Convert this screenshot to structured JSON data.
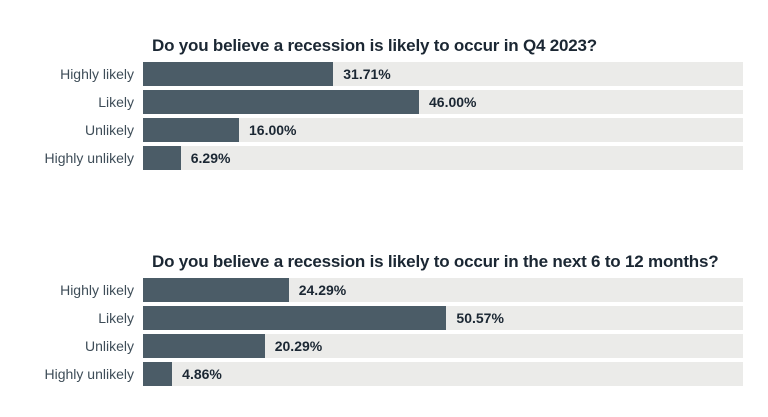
{
  "colors": {
    "bar": "#4b5c67",
    "track": "#ebebe9",
    "title_text": "#1b2733",
    "category_text": "#3e4d58",
    "value_text": "#1b2733",
    "background": "#ffffff"
  },
  "chart_data": [
    {
      "type": "bar",
      "orientation": "horizontal",
      "title": "Do you believe a recession is likely to occur in Q4 2023?",
      "categories": [
        "Highly likely",
        "Likely",
        "Unlikely",
        "Highly unlikely"
      ],
      "values": [
        31.71,
        46.0,
        16.0,
        6.29
      ],
      "value_labels": [
        "31.71%",
        "46.00%",
        "16.00%",
        "6.29%"
      ],
      "xlabel": "",
      "ylabel": "",
      "xlim": [
        0,
        100
      ],
      "grid": false,
      "legend": false,
      "value_label_position": "outside-end"
    },
    {
      "type": "bar",
      "orientation": "horizontal",
      "title": "Do you believe a recession is likely to occur in the next 6 to 12 months?",
      "categories": [
        "Highly likely",
        "Likely",
        "Unlikely",
        "Highly unlikely"
      ],
      "values": [
        24.29,
        50.57,
        20.29,
        4.86
      ],
      "value_labels": [
        "24.29%",
        "50.57%",
        "20.29%",
        "4.86%"
      ],
      "xlabel": "",
      "ylabel": "",
      "xlim": [
        0,
        100
      ],
      "grid": false,
      "legend": false,
      "value_label_position": "outside-end"
    }
  ]
}
